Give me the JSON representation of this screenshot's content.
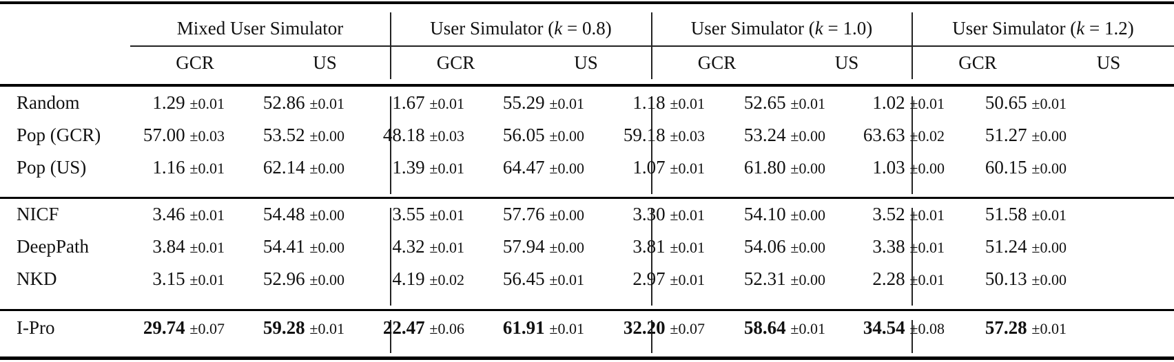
{
  "table": {
    "groups": [
      {
        "label": "Mixed User Simulator",
        "prefix": "Mixed User Simulator",
        "k": null
      },
      {
        "label": "User Simulator (k = 0.8)",
        "prefix": "User Simulator (",
        "kvar": "k",
        "keq": " = 0.8)"
      },
      {
        "label": "User Simulator (k = 1.0)",
        "prefix": "User Simulator (",
        "kvar": "k",
        "keq": " = 1.0)"
      },
      {
        "label": "User Simulator (k = 1.2)",
        "prefix": "User Simulator (",
        "kvar": "k",
        "keq": " = 1.2)"
      }
    ],
    "subheaders": [
      "GCR",
      "US",
      "GCR",
      "US",
      "GCR",
      "US",
      "GCR",
      "US"
    ],
    "sections": [
      {
        "rows": [
          {
            "method": "Random",
            "cells": [
              {
                "v": "1.29",
                "pm": "±0.01"
              },
              {
                "v": "52.86",
                "pm": "±0.01"
              },
              {
                "v": "1.67",
                "pm": "±0.01"
              },
              {
                "v": "55.29",
                "pm": "±0.01"
              },
              {
                "v": "1.18",
                "pm": "±0.01"
              },
              {
                "v": "52.65",
                "pm": "±0.01"
              },
              {
                "v": "1.02",
                "pm": "±0.01"
              },
              {
                "v": "50.65",
                "pm": "±0.01"
              }
            ]
          },
          {
            "method": "Pop (GCR)",
            "cells": [
              {
                "v": "57.00",
                "pm": "±0.03"
              },
              {
                "v": "53.52",
                "pm": "±0.00"
              },
              {
                "v": "48.18",
                "pm": "±0.03"
              },
              {
                "v": "56.05",
                "pm": "±0.00"
              },
              {
                "v": "59.18",
                "pm": "±0.03"
              },
              {
                "v": "53.24",
                "pm": "±0.00"
              },
              {
                "v": "63.63",
                "pm": "±0.02"
              },
              {
                "v": "51.27",
                "pm": "±0.00"
              }
            ]
          },
          {
            "method": "Pop (US)",
            "cells": [
              {
                "v": "1.16",
                "pm": "±0.01"
              },
              {
                "v": "62.14",
                "pm": "±0.00"
              },
              {
                "v": "1.39",
                "pm": "±0.01"
              },
              {
                "v": "64.47",
                "pm": "±0.00"
              },
              {
                "v": "1.07",
                "pm": "±0.01"
              },
              {
                "v": "61.80",
                "pm": "±0.00"
              },
              {
                "v": "1.03",
                "pm": "±0.00"
              },
              {
                "v": "60.15",
                "pm": "±0.00"
              }
            ]
          }
        ]
      },
      {
        "rows": [
          {
            "method": "NICF",
            "cells": [
              {
                "v": "3.46",
                "pm": "±0.01"
              },
              {
                "v": "54.48",
                "pm": "±0.00"
              },
              {
                "v": "3.55",
                "pm": "±0.01"
              },
              {
                "v": "57.76",
                "pm": "±0.00"
              },
              {
                "v": "3.30",
                "pm": "±0.01"
              },
              {
                "v": "54.10",
                "pm": "±0.00"
              },
              {
                "v": "3.52",
                "pm": "±0.01"
              },
              {
                "v": "51.58",
                "pm": "±0.01"
              }
            ]
          },
          {
            "method": "DeepPath",
            "cells": [
              {
                "v": "3.84",
                "pm": "±0.01"
              },
              {
                "v": "54.41",
                "pm": "±0.00"
              },
              {
                "v": "4.32",
                "pm": "±0.01"
              },
              {
                "v": "57.94",
                "pm": "±0.00"
              },
              {
                "v": "3.81",
                "pm": "±0.01"
              },
              {
                "v": "54.06",
                "pm": "±0.00"
              },
              {
                "v": "3.38",
                "pm": "±0.01"
              },
              {
                "v": "51.24",
                "pm": "±0.00"
              }
            ]
          },
          {
            "method": "NKD",
            "cells": [
              {
                "v": "3.15",
                "pm": "±0.01"
              },
              {
                "v": "52.96",
                "pm": "±0.00"
              },
              {
                "v": "4.19",
                "pm": "±0.02"
              },
              {
                "v": "56.45",
                "pm": "±0.01"
              },
              {
                "v": "2.97",
                "pm": "±0.01"
              },
              {
                "v": "52.31",
                "pm": "±0.00"
              },
              {
                "v": "2.28",
                "pm": "±0.01"
              },
              {
                "v": "50.13",
                "pm": "±0.00"
              }
            ]
          }
        ]
      },
      {
        "rows": [
          {
            "method": "I-Pro",
            "bold": true,
            "cells": [
              {
                "v": "29.74",
                "pm": "±0.07"
              },
              {
                "v": "59.28",
                "pm": "±0.01"
              },
              {
                "v": "22.47",
                "pm": "±0.06"
              },
              {
                "v": "61.91",
                "pm": "±0.01"
              },
              {
                "v": "32.20",
                "pm": "±0.07"
              },
              {
                "v": "58.64",
                "pm": "±0.01"
              },
              {
                "v": "34.54",
                "pm": "±0.08"
              },
              {
                "v": "57.28",
                "pm": "±0.01"
              }
            ]
          }
        ]
      }
    ]
  }
}
